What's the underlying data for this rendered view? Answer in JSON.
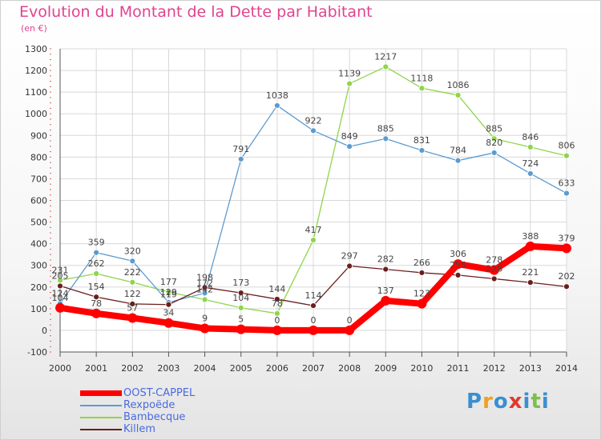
{
  "title": "Evolution du Montant de la Dette par Habitant",
  "subtitle": "(en €)",
  "logo": {
    "text": "Proxiti",
    "colors": [
      "#3a8fd0",
      "#f0a020",
      "#3a8fd0",
      "#e23a2a",
      "#3a8fd0",
      "#7cc04a",
      "#3a8fd0"
    ]
  },
  "chart_data": {
    "type": "line",
    "title": "Evolution du Montant de la Dette par Habitant",
    "subtitle": "(en €)",
    "x": [
      2000,
      2001,
      2002,
      2003,
      2004,
      2005,
      2006,
      2007,
      2008,
      2009,
      2010,
      2011,
      2012,
      2013,
      2014
    ],
    "ylim": [
      -100,
      1300
    ],
    "yticks": [
      -100,
      0,
      100,
      200,
      300,
      400,
      500,
      600,
      700,
      800,
      900,
      1000,
      1100,
      1200,
      1300
    ],
    "grid": true,
    "legend_position": "bottom-left",
    "series": [
      {
        "name": "OOST-CAPPEL",
        "color": "#ff0000",
        "values": [
          104,
          78,
          57,
          34,
          9,
          5,
          0,
          0,
          0,
          137,
          123,
          306,
          278,
          388,
          379
        ]
      },
      {
        "name": "Rexpoëde",
        "color": "#5c9bd0",
        "values": [
          124,
          359,
          320,
          129,
          172,
          791,
          1038,
          922,
          849,
          885,
          831,
          784,
          820,
          724,
          633
        ]
      },
      {
        "name": "Bambecque",
        "color": "#8ed54a",
        "values": [
          231,
          262,
          222,
          177,
          142,
          104,
          78,
          417,
          1139,
          1217,
          1118,
          1086,
          885,
          846,
          806
        ]
      },
      {
        "name": "Killem",
        "color": "#6b1e1e",
        "values": [
          205,
          154,
          122,
          119,
          198,
          173,
          144,
          114,
          297,
          282,
          266,
          255,
          238,
          221,
          202
        ]
      }
    ]
  }
}
